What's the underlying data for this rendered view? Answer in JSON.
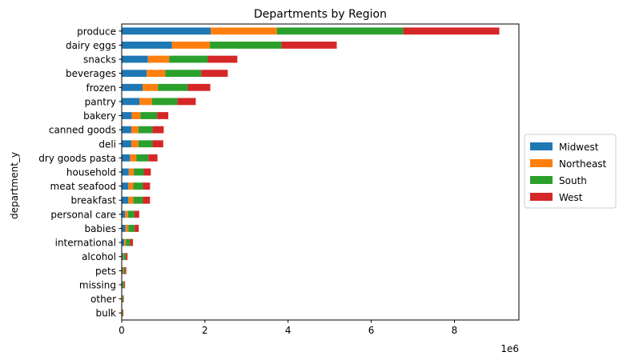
{
  "chart_data": {
    "type": "bar",
    "orientation": "horizontal",
    "stacked": true,
    "title": "Departments by Region",
    "xlabel": "",
    "ylabel": "department_y",
    "x_offset_label": "1e6",
    "xlim": [
      0,
      9.55
    ],
    "x_ticks": [
      0,
      2,
      4,
      6,
      8
    ],
    "x_tick_labels": [
      "0",
      "2",
      "4",
      "6",
      "8"
    ],
    "grid": false,
    "legend_position": "center-right, outside plot",
    "categories": [
      "produce",
      "dairy eggs",
      "snacks",
      "beverages",
      "frozen",
      "pantry",
      "bakery",
      "canned goods",
      "deli",
      "dry goods pasta",
      "household",
      "meat seafood",
      "breakfast",
      "personal care",
      "babies",
      "international",
      "alcohol",
      "pets",
      "missing",
      "other",
      "bulk"
    ],
    "series": [
      {
        "name": "Midwest",
        "color": "#1f77b4",
        "values": [
          2.14,
          1.21,
          0.63,
          0.6,
          0.5,
          0.43,
          0.24,
          0.23,
          0.23,
          0.2,
          0.17,
          0.16,
          0.16,
          0.08,
          0.09,
          0.06,
          0.03,
          0.02,
          0.02,
          0.01,
          0.01
        ]
      },
      {
        "name": "Northeast",
        "color": "#ff7f0e",
        "values": [
          1.59,
          0.91,
          0.51,
          0.45,
          0.37,
          0.3,
          0.21,
          0.17,
          0.17,
          0.15,
          0.12,
          0.12,
          0.12,
          0.07,
          0.07,
          0.04,
          0.02,
          0.02,
          0.01,
          0.01,
          0.01
        ]
      },
      {
        "name": "South",
        "color": "#2ca02c",
        "values": [
          3.04,
          1.72,
          0.93,
          0.86,
          0.72,
          0.61,
          0.4,
          0.34,
          0.34,
          0.29,
          0.24,
          0.23,
          0.23,
          0.15,
          0.15,
          0.1,
          0.05,
          0.04,
          0.03,
          0.02,
          0.01
        ]
      },
      {
        "name": "West",
        "color": "#d62728",
        "values": [
          2.31,
          1.33,
          0.71,
          0.64,
          0.54,
          0.44,
          0.27,
          0.27,
          0.26,
          0.22,
          0.17,
          0.17,
          0.17,
          0.12,
          0.1,
          0.07,
          0.04,
          0.03,
          0.02,
          0.01,
          0.01
        ]
      }
    ]
  }
}
